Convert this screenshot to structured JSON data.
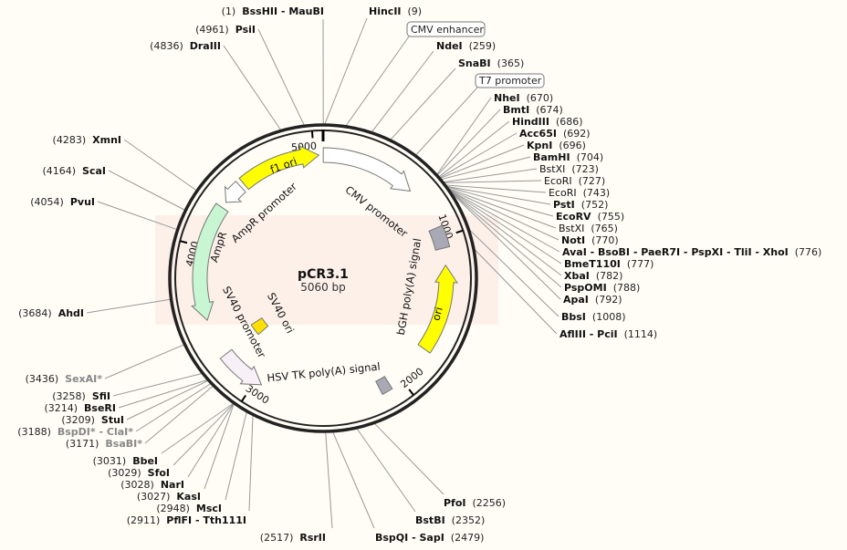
{
  "plasmid": {
    "name": "pCR3.1",
    "length_label": "5060 bp",
    "length_bp": 5060
  },
  "colors": {
    "yellow": "#ffff00",
    "ampr": "#c8f5d2",
    "grey_box": "#a9a9b5",
    "white": "#ffffff",
    "sv40_promoter": "#f7f1f7",
    "watermark": "#fdece6",
    "ghost": "#888888"
  },
  "ticks": [
    {
      "bp": 1000,
      "label": "1000"
    },
    {
      "bp": 2000,
      "label": "2000"
    },
    {
      "bp": 3000,
      "label": "3000"
    },
    {
      "bp": 4000,
      "label": "4000"
    },
    {
      "bp": 5000,
      "label": "5000"
    }
  ],
  "features": [
    {
      "name": "CMV promoter",
      "start": 1,
      "end": 632,
      "dir": 1,
      "color": "#ffffff"
    },
    {
      "name": "f1 ori",
      "start": 4498,
      "end": 5032,
      "dir": 1,
      "color": "#ffff00"
    },
    {
      "name": "AmpR promoter",
      "start": 4329,
      "end": 4470,
      "dir": -1,
      "color": "#ffffff"
    },
    {
      "name": "AmpR",
      "start": 3514,
      "end": 4287,
      "dir": -1,
      "color": "#c8f5d2"
    },
    {
      "name": "SV40 promoter",
      "start": 2952,
      "end": 3261,
      "dir": -1,
      "color": "#f7f1f7"
    },
    {
      "name": "SV40 ori",
      "start": 3219,
      "end": 3331,
      "dir": 0,
      "color": "#ffe000"
    },
    {
      "name": "HSV TK poly(A) signal",
      "start": 2080,
      "end": 2150,
      "dir": 0,
      "color": "#a9a9b5"
    },
    {
      "name": "ori",
      "start": 1180,
      "end": 1757,
      "dir": -1,
      "color": "#ffff00"
    },
    {
      "name": "bGH poly(A) signal",
      "start": 928,
      "end": 1068,
      "dir": 0,
      "color": "#a9a9b5"
    }
  ],
  "boxed_labels": [
    {
      "text": "CMV enhancer",
      "bp": 120
    },
    {
      "text": "T7 promoter",
      "bp": 520
    }
  ],
  "sites": [
    {
      "name": "BssHII - MauBI",
      "pos": "(1)",
      "bp": 1
    },
    {
      "name": "HincII",
      "pos": "(9)",
      "bp": 9
    },
    {
      "name": "NdeI",
      "pos": "(259)",
      "bp": 259
    },
    {
      "name": "SnaBI",
      "pos": "(365)",
      "bp": 365
    },
    {
      "name": "NheI",
      "pos": "(670)",
      "bp": 670
    },
    {
      "name": "BmtI",
      "pos": "(674)",
      "bp": 674
    },
    {
      "name": "HindIII",
      "pos": "(686)",
      "bp": 686
    },
    {
      "name": "Acc65I",
      "pos": "(692)",
      "bp": 692
    },
    {
      "name": "KpnI",
      "pos": "(696)",
      "bp": 696
    },
    {
      "name": "BamHI",
      "pos": "(704)",
      "bp": 704
    },
    {
      "name": "BstXI",
      "pos": "(723)",
      "bp": 723,
      "light": true
    },
    {
      "name": "EcoRI",
      "pos": "(727)",
      "bp": 727,
      "light": true
    },
    {
      "name": "EcoRI",
      "pos": "(743)",
      "bp": 743,
      "light": true
    },
    {
      "name": "PstI",
      "pos": "(752)",
      "bp": 752
    },
    {
      "name": "EcoRV",
      "pos": "(755)",
      "bp": 755
    },
    {
      "name": "BstXI",
      "pos": "(765)",
      "bp": 765,
      "light": true
    },
    {
      "name": "NotI",
      "pos": "(770)",
      "bp": 770
    },
    {
      "name": "AvaI - BsoBI - PaeR7I - PspXI - TliI - XhoI",
      "pos": "(776)",
      "bp": 776
    },
    {
      "name": "BmeT110I",
      "pos": "(777)",
      "bp": 777
    },
    {
      "name": "XbaI",
      "pos": "(782)",
      "bp": 782
    },
    {
      "name": "PspOMI",
      "pos": "(788)",
      "bp": 788
    },
    {
      "name": "ApaI",
      "pos": "(792)",
      "bp": 792
    },
    {
      "name": "BbsI",
      "pos": "(1008)",
      "bp": 1008
    },
    {
      "name": "AflIII - PciI",
      "pos": "(1114)",
      "bp": 1114
    },
    {
      "name": "PfoI",
      "pos": "(2256)",
      "bp": 2256
    },
    {
      "name": "BstBI",
      "pos": "(2352)",
      "bp": 2352
    },
    {
      "name": "BspQI - SapI",
      "pos": "(2479)",
      "bp": 2479
    },
    {
      "name": "RsrII",
      "pos": "(2517)",
      "bp": 2517
    },
    {
      "name": "PflFI - Tth111I",
      "pos": "(2911)",
      "bp": 2911
    },
    {
      "name": "MscI",
      "pos": "(2948)",
      "bp": 2948
    },
    {
      "name": "KasI",
      "pos": "(3027)",
      "bp": 3027
    },
    {
      "name": "NarI",
      "pos": "(3028)",
      "bp": 3028
    },
    {
      "name": "SfoI",
      "pos": "(3029)",
      "bp": 3029
    },
    {
      "name": "BbeI",
      "pos": "(3031)",
      "bp": 3031
    },
    {
      "name": "BsaBI*",
      "pos": "(3171)",
      "bp": 3171,
      "grey": true
    },
    {
      "name": "BspDI* - ClaI*",
      "pos": "(3188)",
      "bp": 3188,
      "grey": true
    },
    {
      "name": "StuI",
      "pos": "(3209)",
      "bp": 3209
    },
    {
      "name": "BseRI",
      "pos": "(3214)",
      "bp": 3214
    },
    {
      "name": "SfiI",
      "pos": "(3258)",
      "bp": 3258
    },
    {
      "name": "SexAI*",
      "pos": "(3436)",
      "bp": 3436,
      "grey": true
    },
    {
      "name": "AhdI",
      "pos": "(3684)",
      "bp": 3684
    },
    {
      "name": "PvuI",
      "pos": "(4054)",
      "bp": 4054
    },
    {
      "name": "ScaI",
      "pos": "(4164)",
      "bp": 4164
    },
    {
      "name": "XmnI",
      "pos": "(4283)",
      "bp": 4283
    },
    {
      "name": "DraIII",
      "pos": "(4836)",
      "bp": 4836
    },
    {
      "name": "PsiI",
      "pos": "(4961)",
      "bp": 4961
    }
  ]
}
